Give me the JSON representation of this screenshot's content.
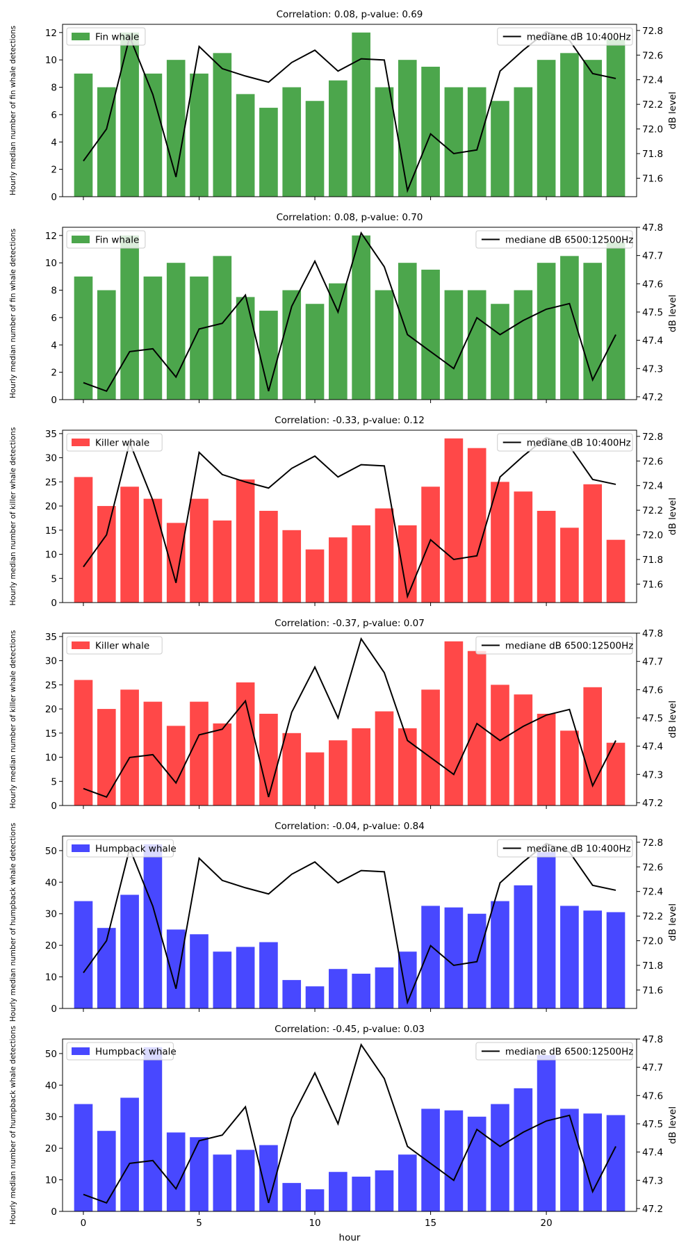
{
  "figure": {
    "xlabel": "hour",
    "right_ylabel": "dB level"
  },
  "chart_data": [
    {
      "type": "bar",
      "title": "Correlation: 0.08, p-value: 0.69",
      "ylabel": "Hourly median number of fin whale detections",
      "ylabel_right": "dB level",
      "bar_color": "#4ca64c",
      "bar_legend": "Fin whale",
      "line_legend": "mediane dB 10:400Hz",
      "ylim": [
        0,
        12.6
      ],
      "yticks": [
        0,
        2,
        4,
        6,
        8,
        10,
        12
      ],
      "y2lim": [
        71.45,
        72.85
      ],
      "y2ticks": [
        "71.6",
        "71.8",
        "72.0",
        "72.2",
        "72.4",
        "72.6",
        "72.8"
      ],
      "x": [
        0,
        1,
        2,
        3,
        4,
        5,
        6,
        7,
        8,
        9,
        10,
        11,
        12,
        13,
        14,
        15,
        16,
        17,
        18,
        19,
        20,
        21,
        22,
        23
      ],
      "bars": [
        9,
        8,
        12,
        9,
        10,
        9,
        10.5,
        7.5,
        6.5,
        8,
        7,
        8.5,
        12,
        8,
        10,
        9.5,
        8,
        8,
        7,
        8,
        10,
        10.5,
        10,
        11.5
      ],
      "line": [
        71.74,
        72.0,
        72.75,
        72.28,
        71.61,
        72.67,
        72.49,
        72.43,
        72.38,
        72.54,
        72.64,
        72.47,
        72.57,
        72.56,
        71.5,
        71.96,
        71.8,
        71.83,
        72.47,
        72.64,
        72.79,
        72.72,
        72.45,
        72.41
      ]
    },
    {
      "type": "bar",
      "title": "Correlation: 0.08, p-value: 0.70",
      "ylabel": "Hourly median number of fin whale detections",
      "ylabel_right": "dB level",
      "bar_color": "#4ca64c",
      "bar_legend": "Fin whale",
      "line_legend": "mediane dB 6500:12500Hz",
      "ylim": [
        0,
        12.6
      ],
      "yticks": [
        0,
        2,
        4,
        6,
        8,
        10,
        12
      ],
      "y2lim": [
        47.19,
        47.8
      ],
      "y2ticks": [
        "47.2",
        "47.3",
        "47.4",
        "47.5",
        "47.6",
        "47.7",
        "47.8"
      ],
      "x": [
        0,
        1,
        2,
        3,
        4,
        5,
        6,
        7,
        8,
        9,
        10,
        11,
        12,
        13,
        14,
        15,
        16,
        17,
        18,
        19,
        20,
        21,
        22,
        23
      ],
      "bars": [
        9,
        8,
        12,
        9,
        10,
        9,
        10.5,
        7.5,
        6.5,
        8,
        7,
        8.5,
        12,
        8,
        10,
        9.5,
        8,
        8,
        7,
        8,
        10,
        10.5,
        10,
        11.5
      ],
      "line": [
        47.25,
        47.22,
        47.36,
        47.37,
        47.27,
        47.44,
        47.46,
        47.56,
        47.22,
        47.52,
        47.68,
        47.5,
        47.78,
        47.66,
        47.42,
        47.36,
        47.3,
        47.48,
        47.42,
        47.47,
        47.51,
        47.53,
        47.26,
        47.42
      ]
    },
    {
      "type": "bar",
      "title": "Correlation: -0.33, p-value: 0.12",
      "ylabel": "Hourly median number of killer whale detections",
      "ylabel_right": "dB level",
      "bar_color": "#ff4848",
      "bar_legend": "Killer whale",
      "line_legend": "mediane dB 10:400Hz",
      "ylim": [
        0,
        35.7
      ],
      "yticks": [
        0,
        5,
        10,
        15,
        20,
        25,
        30,
        35
      ],
      "y2lim": [
        71.45,
        72.85
      ],
      "y2ticks": [
        "71.6",
        "71.8",
        "72.0",
        "72.2",
        "72.4",
        "72.6",
        "72.8"
      ],
      "x": [
        0,
        1,
        2,
        3,
        4,
        5,
        6,
        7,
        8,
        9,
        10,
        11,
        12,
        13,
        14,
        15,
        16,
        17,
        18,
        19,
        20,
        21,
        22,
        23
      ],
      "bars": [
        26,
        20,
        24,
        21.5,
        16.5,
        21.5,
        17,
        25.5,
        19,
        15,
        11,
        13.5,
        16,
        19.5,
        16,
        24,
        34,
        32,
        25,
        23,
        19,
        15.5,
        24.5,
        13
      ],
      "line": [
        71.74,
        72.0,
        72.75,
        72.28,
        71.61,
        72.67,
        72.49,
        72.43,
        72.38,
        72.54,
        72.64,
        72.47,
        72.57,
        72.56,
        71.5,
        71.96,
        71.8,
        71.83,
        72.47,
        72.64,
        72.79,
        72.72,
        72.45,
        72.41
      ]
    },
    {
      "type": "bar",
      "title": "Correlation: -0.37, p-value: 0.07",
      "ylabel": "Hourly median number of killer whale detections",
      "ylabel_right": "dB level",
      "bar_color": "#ff4848",
      "bar_legend": "Killer whale",
      "line_legend": "mediane dB 6500:12500Hz",
      "ylim": [
        0,
        35.7
      ],
      "yticks": [
        0,
        5,
        10,
        15,
        20,
        25,
        30,
        35
      ],
      "y2lim": [
        47.19,
        47.8
      ],
      "y2ticks": [
        "47.2",
        "47.3",
        "47.4",
        "47.5",
        "47.6",
        "47.7",
        "47.8"
      ],
      "x": [
        0,
        1,
        2,
        3,
        4,
        5,
        6,
        7,
        8,
        9,
        10,
        11,
        12,
        13,
        14,
        15,
        16,
        17,
        18,
        19,
        20,
        21,
        22,
        23
      ],
      "bars": [
        26,
        20,
        24,
        21.5,
        16.5,
        21.5,
        17,
        25.5,
        19,
        15,
        11,
        13.5,
        16,
        19.5,
        16,
        24,
        34,
        32,
        25,
        23,
        19,
        15.5,
        24.5,
        13
      ],
      "line": [
        47.25,
        47.22,
        47.36,
        47.37,
        47.27,
        47.44,
        47.46,
        47.56,
        47.22,
        47.52,
        47.68,
        47.5,
        47.78,
        47.66,
        47.42,
        47.36,
        47.3,
        47.48,
        47.42,
        47.47,
        47.51,
        47.53,
        47.26,
        47.42
      ]
    },
    {
      "type": "bar",
      "title": "Correlation: -0.04, p-value: 0.84",
      "ylabel": "Hourly median number of humpback whale detections",
      "ylabel_right": "dB level",
      "bar_color": "#4848ff",
      "bar_legend": "Humpback whale",
      "line_legend": "mediane dB 10:400Hz",
      "ylim": [
        0,
        54.6
      ],
      "yticks": [
        0,
        10,
        20,
        30,
        40,
        50
      ],
      "y2lim": [
        71.45,
        72.85
      ],
      "y2ticks": [
        "71.6",
        "71.8",
        "72.0",
        "72.2",
        "72.4",
        "72.6",
        "72.8"
      ],
      "x": [
        0,
        1,
        2,
        3,
        4,
        5,
        6,
        7,
        8,
        9,
        10,
        11,
        12,
        13,
        14,
        15,
        16,
        17,
        18,
        19,
        20,
        21,
        22,
        23
      ],
      "bars": [
        34,
        25.5,
        36,
        52,
        25,
        23.5,
        18,
        19.5,
        21,
        9,
        7,
        12.5,
        11,
        13,
        18,
        32.5,
        32,
        30,
        34,
        39,
        49.5,
        32.5,
        31,
        30.5
      ],
      "line": [
        71.74,
        72.0,
        72.75,
        72.28,
        71.61,
        72.67,
        72.49,
        72.43,
        72.38,
        72.54,
        72.64,
        72.47,
        72.57,
        72.56,
        71.5,
        71.96,
        71.8,
        71.83,
        72.47,
        72.64,
        72.79,
        72.72,
        72.45,
        72.41
      ]
    },
    {
      "type": "bar",
      "title": "Correlation: -0.45, p-value: 0.03",
      "ylabel": "Hourly median number of humpback whale detections",
      "ylabel_right": "dB level",
      "bar_color": "#4848ff",
      "bar_legend": "Humpback whale",
      "line_legend": "mediane dB 6500:12500Hz",
      "ylim": [
        0,
        54.6
      ],
      "yticks": [
        0,
        10,
        20,
        30,
        40,
        50
      ],
      "y2lim": [
        47.19,
        47.8
      ],
      "y2ticks": [
        "47.2",
        "47.3",
        "47.4",
        "47.5",
        "47.6",
        "47.7",
        "47.8"
      ],
      "x": [
        0,
        1,
        2,
        3,
        4,
        5,
        6,
        7,
        8,
        9,
        10,
        11,
        12,
        13,
        14,
        15,
        16,
        17,
        18,
        19,
        20,
        21,
        22,
        23
      ],
      "bars": [
        34,
        25.5,
        36,
        52,
        25,
        23.5,
        18,
        19.5,
        21,
        9,
        7,
        12.5,
        11,
        13,
        18,
        32.5,
        32,
        30,
        34,
        39,
        49.5,
        32.5,
        31,
        30.5
      ],
      "line": [
        47.25,
        47.22,
        47.36,
        47.37,
        47.27,
        47.44,
        47.46,
        47.56,
        47.22,
        47.52,
        47.68,
        47.5,
        47.78,
        47.66,
        47.42,
        47.36,
        47.3,
        47.48,
        47.42,
        47.47,
        47.51,
        47.53,
        47.26,
        47.42
      ]
    }
  ],
  "xaxis": {
    "ticks": [
      0,
      5,
      10,
      15,
      20
    ],
    "labels": [
      "0",
      "5",
      "10",
      "15",
      "20"
    ],
    "xlim": [
      -0.9,
      23.9
    ]
  }
}
